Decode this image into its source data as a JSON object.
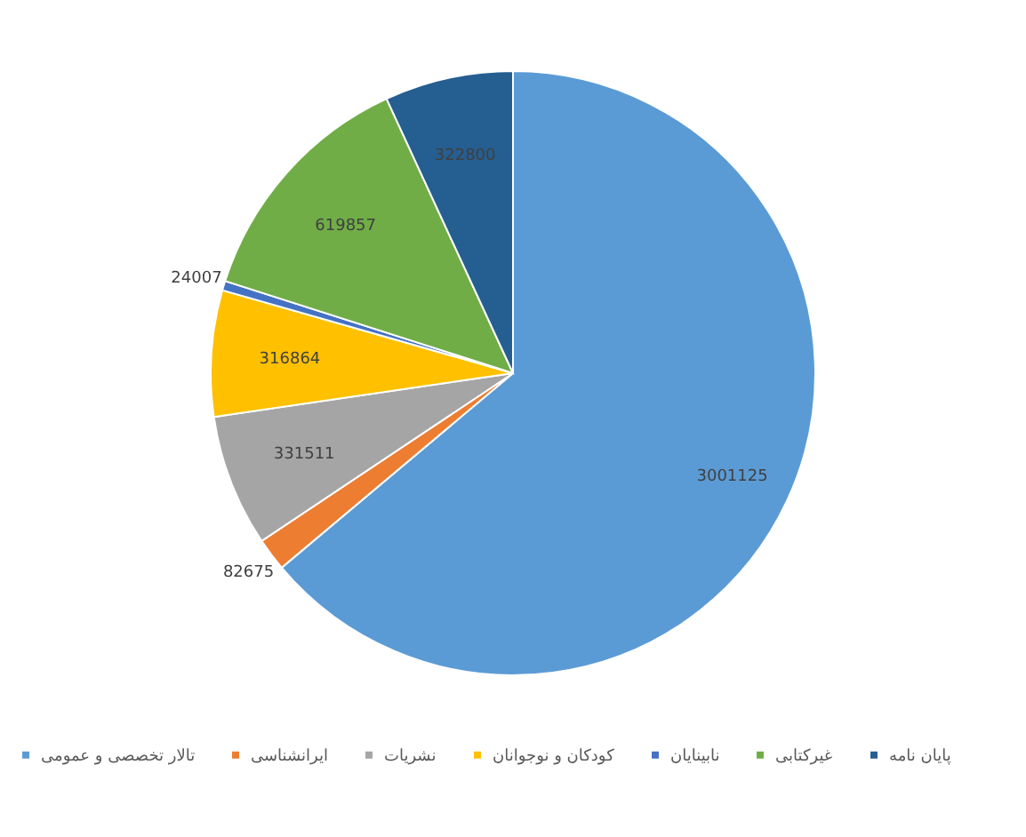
{
  "chart_data": {
    "type": "pie",
    "categories": [
      "تالار تخصصی و عمومی",
      "ایرانشناسی",
      "نشریات",
      "کودکان و نوجوانان",
      "نابینایان",
      "غیرکتابی",
      "پایان نامه"
    ],
    "values": [
      3001125,
      82675,
      331511,
      316864,
      24007,
      619857,
      322800
    ],
    "colors": [
      "#5b9bd5",
      "#ed7d31",
      "#a5a5a5",
      "#ffc000",
      "#4472c4",
      "#70ad47",
      "#255e91"
    ],
    "data_labels": true,
    "legend": "bottom"
  }
}
